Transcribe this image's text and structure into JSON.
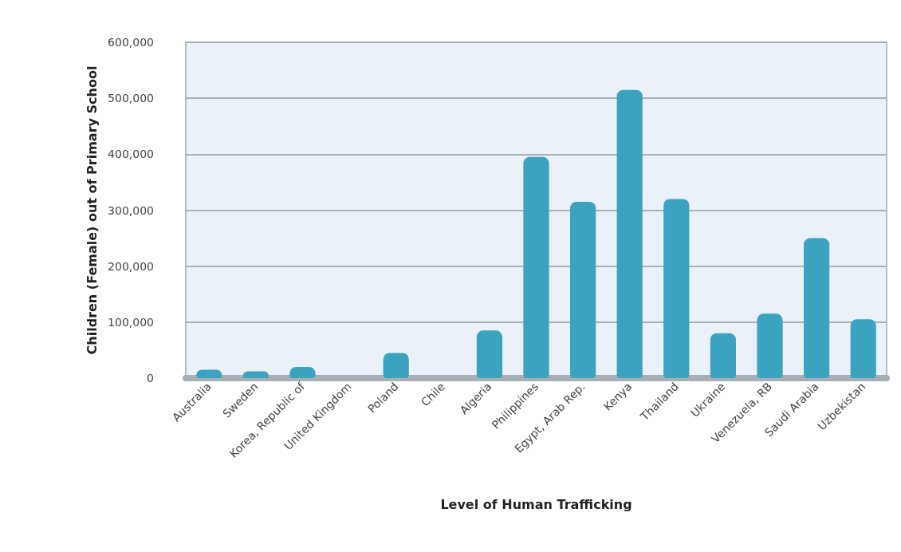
{
  "chart_data": {
    "type": "bar",
    "xlabel": "Level of Human Trafficking",
    "ylabel": "Children (Female) out of Primary School",
    "categories": [
      "Australia",
      "Sweden",
      "Korea, Republic of",
      "United Kingdom",
      "Poland",
      "Chile",
      "Algeria",
      "Philippines",
      "Egypt, Arab Rep.",
      "Kenya",
      "Thailand",
      "Ukraine",
      "Venezuela, RB",
      "Saudi Arabia",
      "Uzbekistan"
    ],
    "values": [
      15000,
      12000,
      20000,
      0,
      45000,
      0,
      85000,
      395000,
      315000,
      515000,
      320000,
      80000,
      115000,
      250000,
      105000
    ],
    "color": "#3ba3c0",
    "ylim": [
      0,
      600000
    ],
    "yticks": [
      0,
      {
        "value": 100000,
        "label": "100,000"
      },
      {
        "value": 200000,
        "label": "200,000"
      },
      {
        "value": 300000,
        "label": "300,000"
      },
      {
        "value": 400000,
        "label": "400,000"
      },
      {
        "value": 500000,
        "label": "500,000"
      },
      {
        "value": 600000,
        "label": "600,000"
      }
    ],
    "grid": "y"
  }
}
